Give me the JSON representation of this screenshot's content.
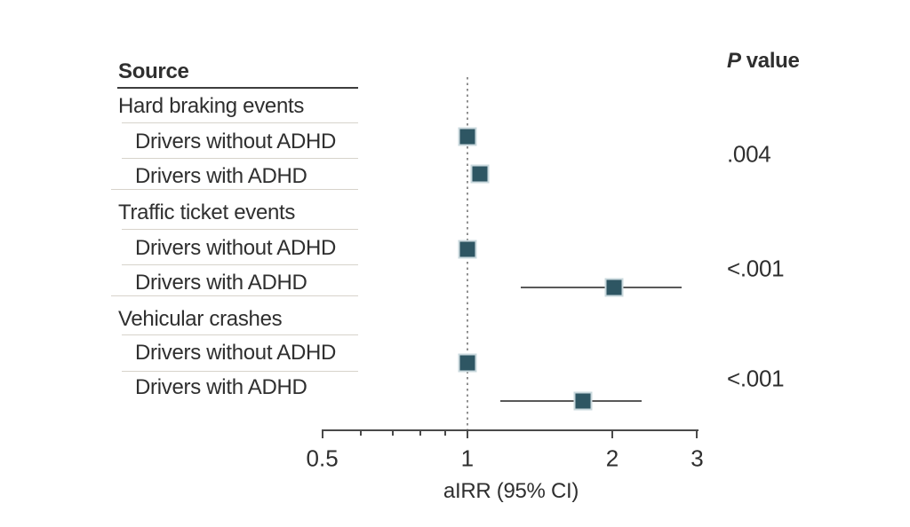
{
  "figure": {
    "source_header": "Source",
    "p_value_header_italic": "P",
    "p_value_header_rest": "value",
    "xlabel": "aIRR (95% CI)"
  },
  "colors": {
    "marker": "#2e5663",
    "marker_border": "#c9d8dd",
    "ci": "#595959",
    "axis": "#4a4a4a",
    "text": "#2f2f2f",
    "separator": "#d7d3cb",
    "rule": "#3d3d3d",
    "dotted": "#909090"
  },
  "chart_data": {
    "type": "scatter",
    "subtype": "forest-plot",
    "xlabel": "aIRR (95% CI)",
    "x_scale": "log",
    "xlim": [
      0.5,
      3
    ],
    "reference_line_x": 1,
    "axis_ticks": [
      {
        "value": 0.5,
        "label": "0.5"
      },
      {
        "value": 1,
        "label": "1"
      },
      {
        "value": 2,
        "label": "2"
      },
      {
        "value": 3,
        "label": "3"
      }
    ],
    "minor_ticks": [
      0.6,
      0.7,
      0.8,
      0.9
    ],
    "legend_position": "none",
    "grid": false,
    "groups": [
      {
        "label": "Hard braking events",
        "p_value": ".004",
        "rows": [
          {
            "label": "Drivers without ADHD",
            "estimate": 1.0,
            "ci_low": null,
            "ci_high": null
          },
          {
            "label": "Drivers with ADHD",
            "estimate": 1.06,
            "ci_low": null,
            "ci_high": null
          }
        ]
      },
      {
        "label": "Traffic ticket events",
        "p_value": "<.001",
        "rows": [
          {
            "label": "Drivers without ADHD",
            "estimate": 1.0,
            "ci_low": null,
            "ci_high": null
          },
          {
            "label": "Drivers with ADHD",
            "estimate": 2.02,
            "ci_low": 1.29,
            "ci_high": 2.78
          }
        ]
      },
      {
        "label": "Vehicular crashes",
        "p_value": "<.001",
        "rows": [
          {
            "label": "Drivers without ADHD",
            "estimate": 1.0,
            "ci_low": null,
            "ci_high": null
          },
          {
            "label": "Drivers with ADHD",
            "estimate": 1.74,
            "ci_low": 1.17,
            "ci_high": 2.3
          }
        ]
      }
    ]
  }
}
